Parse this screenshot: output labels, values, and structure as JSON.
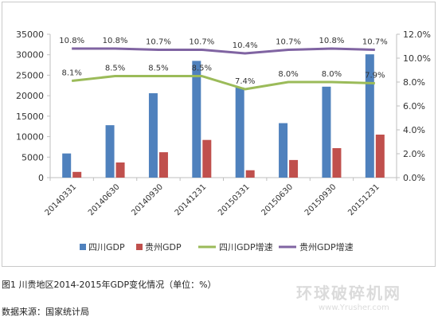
{
  "chart_data": {
    "type": "bar+line",
    "categories": [
      "20140331",
      "20140630",
      "20140930",
      "20141231",
      "20150331",
      "20150630",
      "20150930",
      "20151231"
    ],
    "left_axis": {
      "min": 0,
      "max": 35000,
      "step": 5000,
      "ticks": [
        "0",
        "5000",
        "10000",
        "15000",
        "20000",
        "25000",
        "30000",
        "35000"
      ]
    },
    "right_axis": {
      "min": 0,
      "max": 12,
      "step": 2,
      "ticks": [
        "0.0%",
        "2.0%",
        "4.0%",
        "6.0%",
        "8.0%",
        "10.0%",
        "12.0%"
      ]
    },
    "bar_series": [
      {
        "name": "四川GDP",
        "color": "#4f81bd",
        "values": [
          5900,
          12800,
          20600,
          28500,
          22000,
          13300,
          22200,
          30100
        ]
      },
      {
        "name": "贵州GDP",
        "color": "#c0504d",
        "values": [
          1400,
          3700,
          6200,
          9200,
          1800,
          4300,
          7200,
          10500
        ]
      }
    ],
    "line_series": [
      {
        "name": "四川GDP增速",
        "color": "#9bbb59",
        "values": [
          8.1,
          8.5,
          8.5,
          8.5,
          7.4,
          8.0,
          8.0,
          7.9
        ],
        "labels": [
          "8.1%",
          "8.5%",
          "8.5%",
          "8.5%",
          "7.4%",
          "8.0%",
          "8.0%",
          "7.9%"
        ]
      },
      {
        "name": "贵州GDP增速",
        "color": "#8064a2",
        "values": [
          10.8,
          10.8,
          10.7,
          10.7,
          10.4,
          10.7,
          10.8,
          10.7
        ],
        "labels": [
          "10.8%",
          "10.8%",
          "10.7%",
          "10.7%",
          "10.4%",
          "10.7%",
          "10.8%",
          "10.7%"
        ]
      }
    ],
    "grid": false,
    "legend_position": "bottom"
  },
  "captions": {
    "figure": "图1  川贵地区2014-2015年GDP变化情况（单位：%）",
    "source": "数据来源：国家统计局"
  },
  "watermark": {
    "text": "环球破碎机网",
    "url": "www.Yrusher.com"
  }
}
